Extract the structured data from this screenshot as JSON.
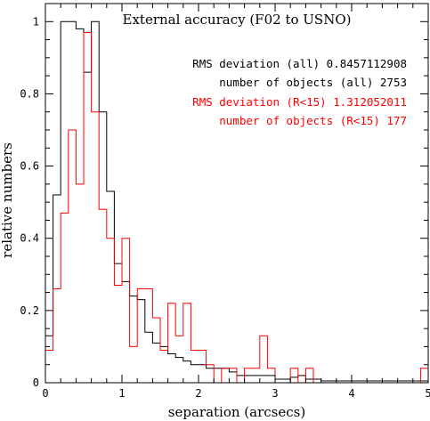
{
  "chart_data": {
    "type": "histogram",
    "title": "External accuracy (F02 to USNO)",
    "xlabel": "separation (arcsecs)",
    "ylabel": "relative numbers",
    "xlim": [
      0,
      5
    ],
    "ylim": [
      0,
      1.05
    ],
    "x_ticks": [
      "0",
      "1",
      "2",
      "3",
      "4",
      "5"
    ],
    "y_ticks": [
      "0",
      "0.2",
      "0.4",
      "0.6",
      "0.8",
      "1"
    ],
    "bin_width": 0.1,
    "annotations": {
      "rms_all": "RMS deviation (all) 0.8457112908",
      "n_all": "number of objects (all) 2753",
      "rms_r15": "RMS deviation (R<15) 1.312052011",
      "n_r15": "number of objects (R<15) 177"
    },
    "series": [
      {
        "name": "all",
        "color": "#000000",
        "values": [
          0.13,
          0.52,
          1.0,
          1.0,
          0.98,
          0.86,
          1.0,
          0.75,
          0.53,
          0.33,
          0.28,
          0.24,
          0.23,
          0.14,
          0.11,
          0.1,
          0.08,
          0.07,
          0.06,
          0.05,
          0.05,
          0.04,
          0.04,
          0.04,
          0.03,
          0.02,
          0.02,
          0.02,
          0.02,
          0.02,
          0.01,
          0.01,
          0.015,
          0.02,
          0.01,
          0.01,
          0.005,
          0.005,
          0.005,
          0.005,
          0.005,
          0.005,
          0.005,
          0.005,
          0.005,
          0.005,
          0.005,
          0.005,
          0.005,
          0.005
        ]
      },
      {
        "name": "R<15",
        "color": "#ff0000",
        "values": [
          0.09,
          0.26,
          0.47,
          0.7,
          0.55,
          0.97,
          0.75,
          0.48,
          0.4,
          0.27,
          0.4,
          0.1,
          0.26,
          0.26,
          0.18,
          0.09,
          0.22,
          0.13,
          0.22,
          0.09,
          0.09,
          0.05,
          0.0,
          0.04,
          0.04,
          0.0,
          0.04,
          0.04,
          0.13,
          0.04,
          0.0,
          0.0,
          0.04,
          0.0,
          0.04,
          0.0,
          0.0,
          0.0,
          0.0,
          0.0,
          0.0,
          0.0,
          0.0,
          0.0,
          0.0,
          0.0,
          0.0,
          0.0,
          0.0,
          0.04
        ]
      }
    ]
  }
}
